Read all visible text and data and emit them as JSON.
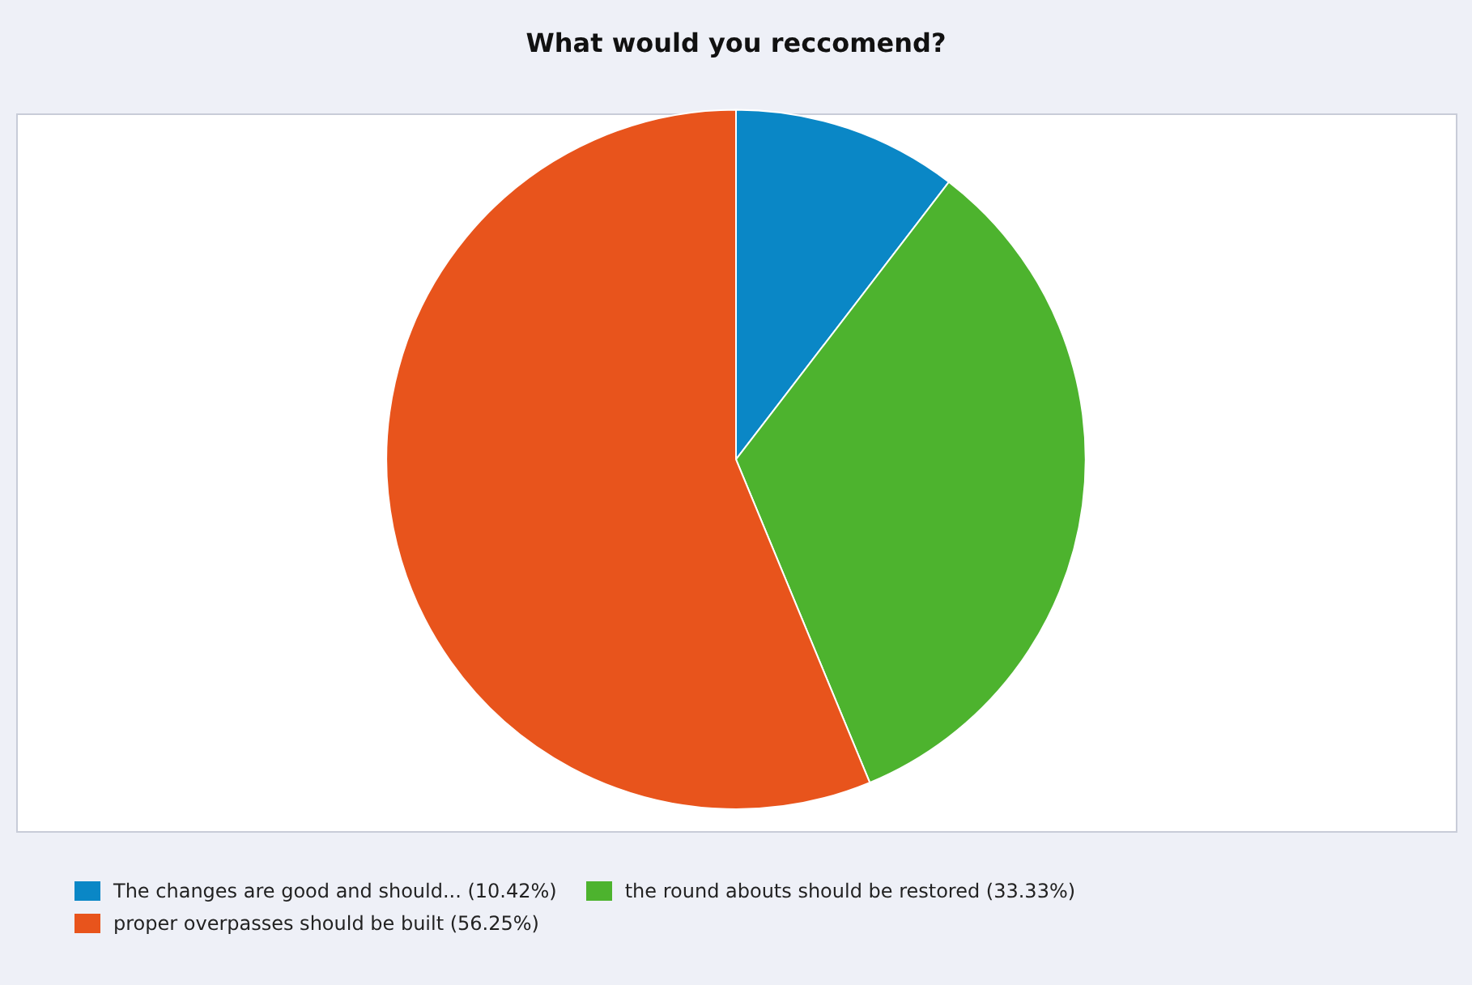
{
  "chart_data": {
    "type": "pie",
    "title": "What would you reccomend?",
    "categories": [
      "The changes are good and should... (10.42%)",
      "the round abouts should be restored (33.33%)",
      "proper overpasses should be built (56.25%)"
    ],
    "values": [
      10.42,
      33.33,
      56.25
    ],
    "colors": [
      "#0a87c6",
      "#4db32e",
      "#e8541c"
    ],
    "legend": "bottom"
  }
}
